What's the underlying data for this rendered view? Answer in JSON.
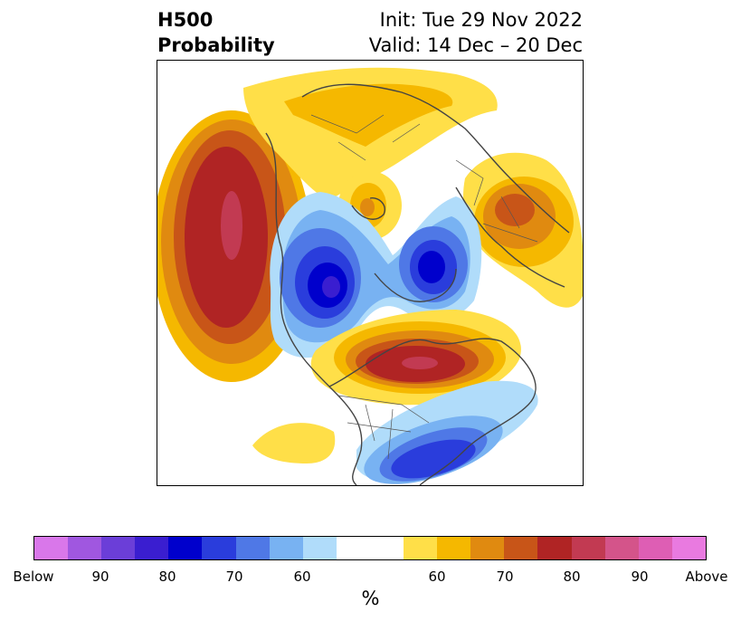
{
  "header": {
    "left_line1": "H500",
    "left_line2": "Probability",
    "right_line1": "Init: Tue 29 Nov 2022",
    "right_line2": "Valid: 14 Dec – 20 Dec"
  },
  "colorbar": {
    "colors": [
      "#d977ea",
      "#a057e0",
      "#6b3ed8",
      "#3a1ed0",
      "#0000cc",
      "#2a3ddc",
      "#4f78e6",
      "#78b2f2",
      "#b0dcfa",
      "#ffffff",
      "#ffdf48",
      "#f5b800",
      "#e08a10",
      "#c85518",
      "#b02424",
      "#c23a52",
      "#d4548a",
      "#de5eb4",
      "#e97ae0"
    ],
    "labels": [
      "Below",
      "90",
      "80",
      "70",
      "60",
      "60",
      "70",
      "80",
      "90",
      "Above"
    ],
    "units": "%"
  },
  "map": {
    "palette": {
      "blue1": "#b0dcfa",
      "blue2": "#78b2f2",
      "blue3": "#4f78e6",
      "blue4": "#2a3ddc",
      "blue5": "#0000cc",
      "blue6": "#3a1ed0",
      "warm1": "#ffdf48",
      "warm2": "#f5b800",
      "warm3": "#e08a10",
      "warm4": "#c85518",
      "warm5": "#b02424",
      "warm6": "#c23a52",
      "coast": "#444444"
    }
  }
}
